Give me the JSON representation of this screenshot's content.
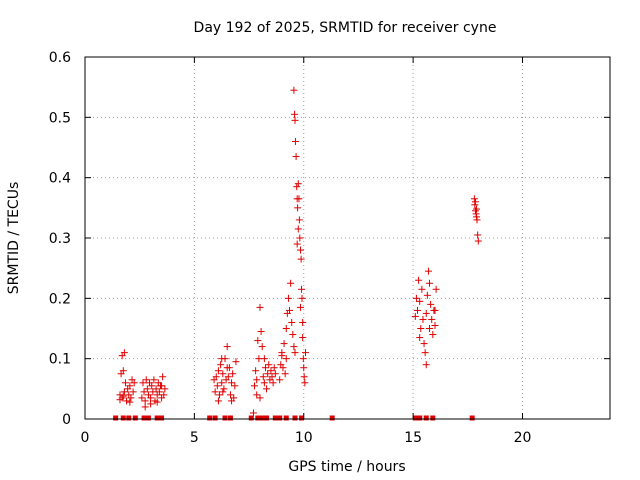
{
  "chart_data": {
    "type": "scatter",
    "title": "Day 192 of 2025, SRMTID for receiver cyne",
    "xlabel": "GPS time / hours",
    "ylabel": "SRMTID / TECUs",
    "xlim": [
      0,
      24
    ],
    "ylim": [
      0,
      0.6
    ],
    "xticks": [
      0,
      5,
      10,
      15,
      20
    ],
    "xtick_labels": [
      "0",
      "5",
      "10",
      "15",
      "20"
    ],
    "yticks": [
      0,
      0.1,
      0.2,
      0.3,
      0.4,
      0.5,
      0.6
    ],
    "ytick_labels": [
      "0",
      "0.1",
      "0.2",
      "0.3",
      "0.4",
      "0.5",
      "0.6"
    ],
    "grid": true,
    "series": [
      {
        "name": "SRMTID",
        "color": "#e00000",
        "marker": "plus",
        "points": [
          [
            1.6,
            0.04
          ],
          [
            1.65,
            0.075
          ],
          [
            1.7,
            0.035
          ],
          [
            1.7,
            0.105
          ],
          [
            1.75,
            0.08
          ],
          [
            1.8,
            0.11
          ],
          [
            1.8,
            0.045
          ],
          [
            1.85,
            0.06
          ],
          [
            1.9,
            0.03
          ],
          [
            1.95,
            0.05
          ],
          [
            2.0,
            0.04
          ],
          [
            2.05,
            0.055
          ],
          [
            2.1,
            0.035
          ],
          [
            2.15,
            0.065
          ],
          [
            2.2,
            0.045
          ],
          [
            2.25,
            0.06
          ],
          [
            1.6,
            0.032
          ],
          [
            1.75,
            0.038
          ],
          [
            2.05,
            0.028
          ],
          [
            2.6,
            0.035
          ],
          [
            2.65,
            0.06
          ],
          [
            2.7,
            0.045
          ],
          [
            2.75,
            0.03
          ],
          [
            2.8,
            0.065
          ],
          [
            2.85,
            0.05
          ],
          [
            2.9,
            0.04
          ],
          [
            2.95,
            0.06
          ],
          [
            3.0,
            0.035
          ],
          [
            3.05,
            0.055
          ],
          [
            3.1,
            0.045
          ],
          [
            3.15,
            0.065
          ],
          [
            3.2,
            0.03
          ],
          [
            3.25,
            0.05
          ],
          [
            3.3,
            0.04
          ],
          [
            3.35,
            0.06
          ],
          [
            3.4,
            0.045
          ],
          [
            3.45,
            0.055
          ],
          [
            3.5,
            0.035
          ],
          [
            3.55,
            0.07
          ],
          [
            3.6,
            0.04
          ],
          [
            3.65,
            0.05
          ],
          [
            2.75,
            0.02
          ],
          [
            3.0,
            0.025
          ],
          [
            3.3,
            0.028
          ],
          [
            3.5,
            0.055
          ],
          [
            5.9,
            0.065
          ],
          [
            5.95,
            0.045
          ],
          [
            6.0,
            0.07
          ],
          [
            6.05,
            0.055
          ],
          [
            6.1,
            0.08
          ],
          [
            6.15,
            0.04
          ],
          [
            6.2,
            0.09
          ],
          [
            6.25,
            0.06
          ],
          [
            6.3,
            0.075
          ],
          [
            6.35,
            0.05
          ],
          [
            6.4,
            0.1
          ],
          [
            6.45,
            0.065
          ],
          [
            6.5,
            0.12
          ],
          [
            6.55,
            0.07
          ],
          [
            6.6,
            0.085
          ],
          [
            6.65,
            0.04
          ],
          [
            6.7,
            0.06
          ],
          [
            6.75,
            0.075
          ],
          [
            6.8,
            0.035
          ],
          [
            6.85,
            0.055
          ],
          [
            6.9,
            0.095
          ],
          [
            6.1,
            0.03
          ],
          [
            6.3,
            0.045
          ],
          [
            6.5,
            0.085
          ],
          [
            6.7,
            0.03
          ],
          [
            6.25,
            0.1
          ],
          [
            7.7,
            0.01
          ],
          [
            7.75,
            0.055
          ],
          [
            7.8,
            0.08
          ],
          [
            7.85,
            0.065
          ],
          [
            7.9,
            0.13
          ],
          [
            7.95,
            0.1
          ],
          [
            8.0,
            0.185
          ],
          [
            8.05,
            0.145
          ],
          [
            8.1,
            0.12
          ],
          [
            8.15,
            0.07
          ],
          [
            8.2,
            0.06
          ],
          [
            8.25,
            0.085
          ],
          [
            8.3,
            0.05
          ],
          [
            8.35,
            0.075
          ],
          [
            8.4,
            0.09
          ],
          [
            8.45,
            0.065
          ],
          [
            8.5,
            0.08
          ],
          [
            8.55,
            0.07
          ],
          [
            8.6,
            0.06
          ],
          [
            8.65,
            0.085
          ],
          [
            8.7,
            0.075
          ],
          [
            8.0,
            0.035
          ],
          [
            7.85,
            0.04
          ],
          [
            8.2,
            0.1
          ],
          [
            8.9,
            0.065
          ],
          [
            8.95,
            0.09
          ],
          [
            9.0,
            0.105
          ],
          [
            9.05,
            0.085
          ],
          [
            9.1,
            0.125
          ],
          [
            9.15,
            0.075
          ],
          [
            9.2,
            0.15
          ],
          [
            9.25,
            0.175
          ],
          [
            9.3,
            0.2
          ],
          [
            9.35,
            0.18
          ],
          [
            9.4,
            0.225
          ],
          [
            9.45,
            0.16
          ],
          [
            9.5,
            0.14
          ],
          [
            9.55,
            0.12
          ],
          [
            9.6,
            0.11
          ],
          [
            9.0,
            0.11
          ],
          [
            9.2,
            0.1
          ],
          [
            9.55,
            0.545
          ],
          [
            9.58,
            0.505
          ],
          [
            9.6,
            0.495
          ],
          [
            9.62,
            0.46
          ],
          [
            9.65,
            0.435
          ],
          [
            9.68,
            0.385
          ],
          [
            9.7,
            0.365
          ],
          [
            9.72,
            0.35
          ],
          [
            9.75,
            0.39
          ],
          [
            9.78,
            0.365
          ],
          [
            9.8,
            0.33
          ],
          [
            9.82,
            0.3
          ],
          [
            9.85,
            0.28
          ],
          [
            9.88,
            0.265
          ],
          [
            9.9,
            0.215
          ],
          [
            9.92,
            0.2
          ],
          [
            9.95,
            0.135
          ],
          [
            9.98,
            0.1
          ],
          [
            10.0,
            0.085
          ],
          [
            10.02,
            0.07
          ],
          [
            10.05,
            0.06
          ],
          [
            10.08,
            0.11
          ],
          [
            9.7,
            0.29
          ],
          [
            9.75,
            0.315
          ],
          [
            9.85,
            0.185
          ],
          [
            9.95,
            0.16
          ],
          [
            15.1,
            0.17
          ],
          [
            15.15,
            0.2
          ],
          [
            15.2,
            0.18
          ],
          [
            15.25,
            0.23
          ],
          [
            15.3,
            0.195
          ],
          [
            15.35,
            0.15
          ],
          [
            15.4,
            0.215
          ],
          [
            15.45,
            0.165
          ],
          [
            15.5,
            0.125
          ],
          [
            15.55,
            0.11
          ],
          [
            15.6,
            0.09
          ],
          [
            15.65,
            0.205
          ],
          [
            15.7,
            0.245
          ],
          [
            15.75,
            0.225
          ],
          [
            15.8,
            0.19
          ],
          [
            15.85,
            0.165
          ],
          [
            15.9,
            0.14
          ],
          [
            15.95,
            0.18
          ],
          [
            16.0,
            0.155
          ],
          [
            16.05,
            0.215
          ],
          [
            15.3,
            0.135
          ],
          [
            15.6,
            0.175
          ],
          [
            15.75,
            0.15
          ],
          [
            16.0,
            0.18
          ],
          [
            17.8,
            0.365
          ],
          [
            17.82,
            0.355
          ],
          [
            17.85,
            0.345
          ],
          [
            17.88,
            0.34
          ],
          [
            17.9,
            0.335
          ],
          [
            17.92,
            0.33
          ],
          [
            17.95,
            0.305
          ],
          [
            17.98,
            0.295
          ],
          [
            17.85,
            0.36
          ],
          [
            17.9,
            0.348
          ]
        ]
      },
      {
        "name": "zero markers",
        "color": "#e00000",
        "marker": "square",
        "x": [
          1.4,
          1.75,
          2.0,
          2.3,
          2.7,
          2.9,
          3.3,
          3.5,
          5.7,
          5.95,
          6.4,
          6.65,
          7.6,
          7.9,
          8.1,
          8.3,
          8.7,
          8.9,
          9.2,
          9.6,
          9.9,
          11.3,
          15.1,
          15.3,
          15.6,
          15.9,
          17.7
        ]
      }
    ]
  }
}
